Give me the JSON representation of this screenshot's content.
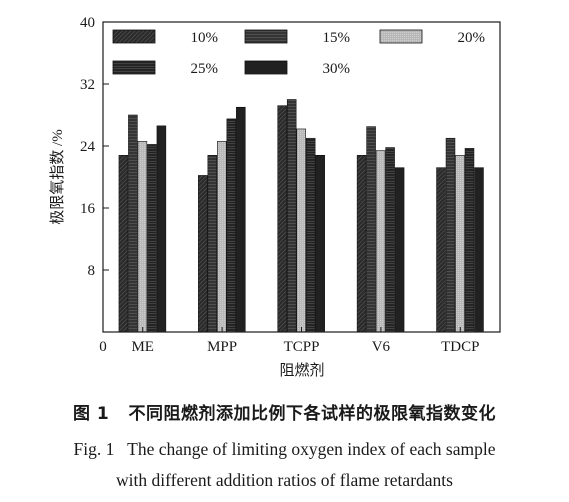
{
  "figure": {
    "caption_zh": "图 1   不同阻燃剂添加比例下各试样的极限氧指数变化",
    "caption_en_line1": "Fig. 1   The change of limiting oxygen index of each sample",
    "caption_en_line2": "with different addition ratios of flame retardants"
  },
  "chart_data": {
    "type": "bar",
    "title": "",
    "xlabel": "阻燃剂",
    "ylabel": "极限氧指数 /%",
    "origin_label": "0",
    "categories": [
      "ME",
      "MPP",
      "TCPP",
      "V6",
      "TDCP"
    ],
    "ylim": [
      0,
      40
    ],
    "yticks": [
      8,
      16,
      24,
      32,
      40
    ],
    "legend_position": "top",
    "series": [
      {
        "name": "10%",
        "values": [
          22.8,
          20.2,
          29.2,
          22.8,
          21.2
        ]
      },
      {
        "name": "15%",
        "values": [
          28.0,
          22.8,
          30.0,
          26.5,
          25.0
        ]
      },
      {
        "name": "20%",
        "values": [
          24.6,
          24.6,
          26.2,
          23.4,
          22.8
        ]
      },
      {
        "name": "25%",
        "values": [
          24.2,
          27.5,
          25.0,
          23.8,
          23.7
        ]
      },
      {
        "name": "30%",
        "values": [
          26.6,
          29.0,
          22.8,
          21.2,
          21.2
        ]
      }
    ],
    "colors": {
      "10%": "#2b2b2b",
      "15%": "#3a3a3a",
      "20%": "#bcbcbc",
      "25%": "#262626",
      "30%": "#1a1a1a"
    }
  }
}
